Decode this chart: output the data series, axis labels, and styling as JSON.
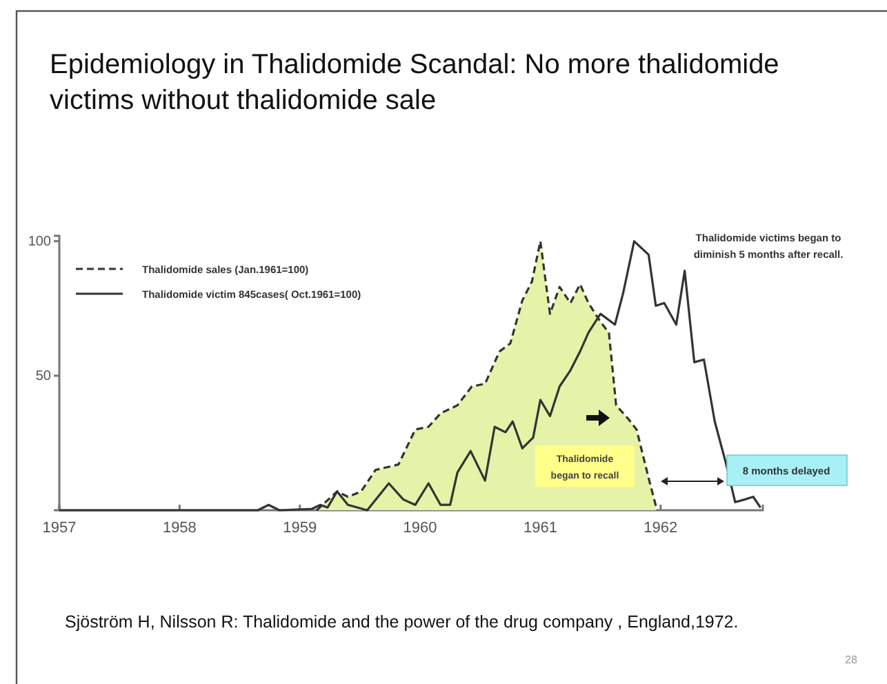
{
  "chart_data": {
    "type": "line",
    "title": "Epidemiology in Thalidomide Scandal: No more thalidomide\nvictims without thalidomide sale",
    "xlim": [
      1957,
      1962.85
    ],
    "xticks": [
      1957,
      1958,
      1959,
      1960,
      1961,
      1962
    ],
    "ylim": [
      0,
      102
    ],
    "yticks": [
      50,
      100
    ],
    "legend": "top left",
    "grid": false,
    "series": [
      {
        "name": "Thalidomide sales (Jan.1961=100)",
        "type": "area",
        "line_style": "dashed",
        "color": "#e4f3a8",
        "x": [
          1959.14,
          1959.31,
          1959.4,
          1959.51,
          1959.63,
          1959.82,
          1959.96,
          1960.07,
          1960.17,
          1960.31,
          1960.43,
          1960.54,
          1960.66,
          1960.75,
          1960.85,
          1960.93,
          1961.0,
          1961.08,
          1961.16,
          1961.25,
          1961.33,
          1961.4,
          1961.5,
          1961.57,
          1961.63,
          1961.73,
          1961.8,
          1961.9,
          1961.97
        ],
        "values": [
          0,
          7,
          5,
          7,
          15,
          17,
          30,
          31,
          36,
          39,
          46,
          47,
          59,
          62,
          78,
          85,
          100,
          73,
          83,
          77,
          84,
          77,
          70,
          66,
          39,
          34,
          30,
          12,
          0
        ]
      },
      {
        "name": "Thalidomide victim 845cases( Oct.1961=100)",
        "line_style": "solid",
        "color": "#333333",
        "x": [
          1957,
          1958.65,
          1958.74,
          1958.83,
          1959.1,
          1959.17,
          1959.23,
          1959.31,
          1959.4,
          1959.56,
          1959.74,
          1959.86,
          1959.96,
          1960.07,
          1960.17,
          1960.25,
          1960.31,
          1960.42,
          1960.54,
          1960.62,
          1960.71,
          1960.77,
          1960.85,
          1960.94,
          1961.0,
          1961.08,
          1961.16,
          1961.25,
          1961.33,
          1961.4,
          1961.5,
          1961.62,
          1961.69,
          1961.78,
          1961.9,
          1961.96,
          1962.03,
          1962.13,
          1962.2,
          1962.28,
          1962.36,
          1962.45,
          1962.54,
          1962.62,
          1962.7,
          1962.77,
          1962.83
        ],
        "values": [
          0,
          0,
          2,
          0,
          0.5,
          2,
          1,
          7,
          2,
          0,
          10,
          4,
          2,
          10,
          2,
          2,
          14,
          22,
          11,
          31,
          29,
          33,
          23,
          27,
          41,
          35,
          46,
          52,
          59,
          66,
          73,
          69,
          81,
          100,
          95,
          76,
          77,
          69,
          89,
          55,
          56,
          33,
          18,
          3,
          4,
          5,
          1
        ]
      }
    ],
    "annotations": [
      "Thalidomide victims began to\ndiminish 5 months after recall.",
      "Thalidomide\nbegan to recall",
      "8 months delayed",
      "Sjöström H, Nilsson R: Thalidomide and the power of the drug company , England,1972.",
      "28"
    ]
  }
}
